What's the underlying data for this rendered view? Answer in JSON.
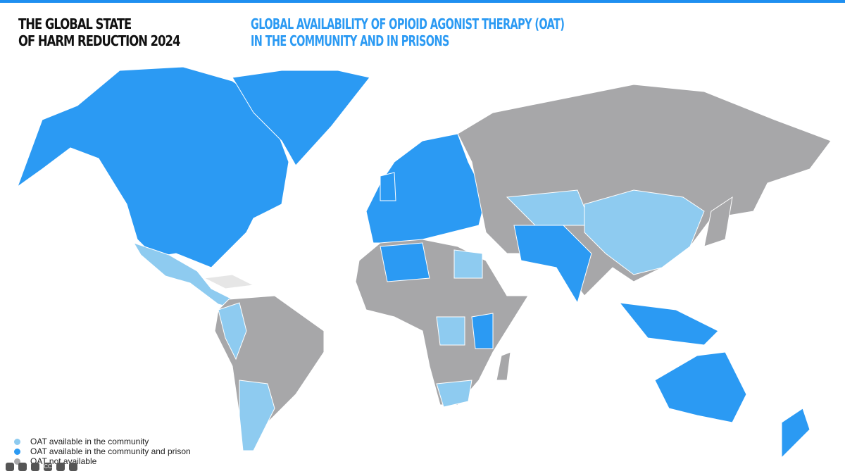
{
  "header": {
    "title_lines": [
      "THE GLOBAL STATE",
      "OF HARM REDUCTION 2024"
    ]
  },
  "map": {
    "title_lines": [
      "GLOBAL AVAILABILITY OF OPIOID AGONIST THERAPY (OAT)",
      "IN THE COMMUNITY AND IN PRISONS"
    ],
    "legend": [
      {
        "label": "OAT available in the community",
        "color": "#8ecbf0"
      },
      {
        "label": "OAT available in the community and prison",
        "color": "#2b9af3"
      },
      {
        "label": "OAT not available",
        "color": "#a7a7a9"
      }
    ]
  },
  "toolbar": {
    "cc": "CC"
  }
}
